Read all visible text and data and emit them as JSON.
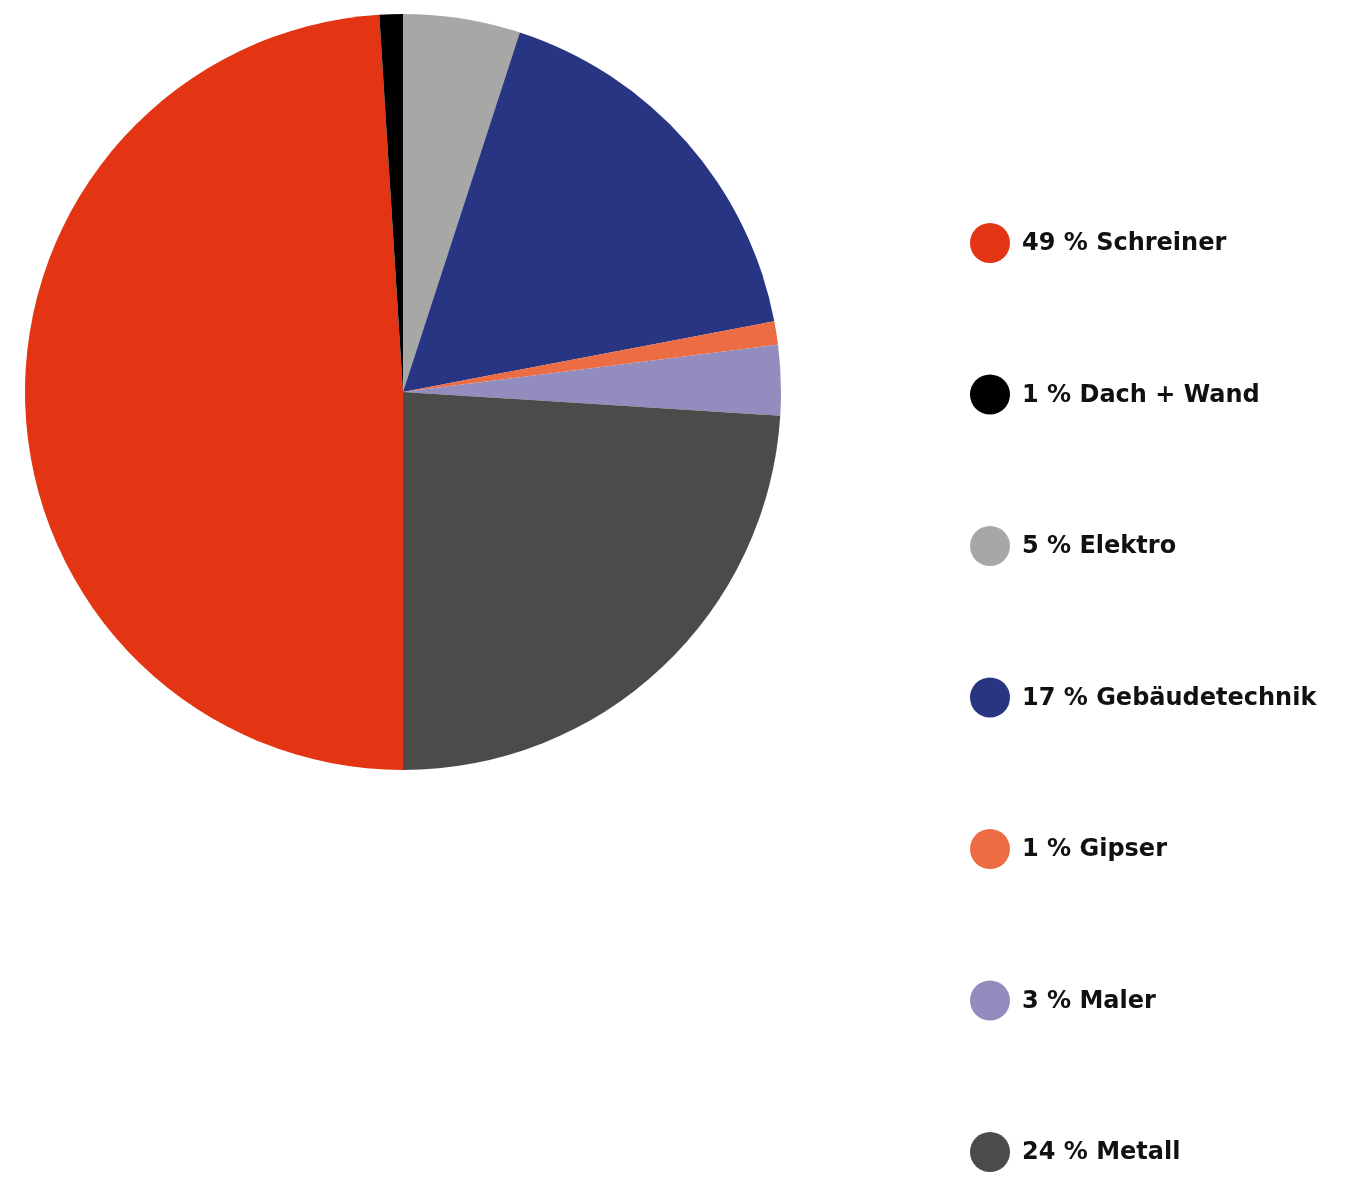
{
  "chart_data": {
    "type": "pie",
    "categories": [
      "Schreiner",
      "Dach + Wand",
      "Elektro",
      "Gebäudetechnik",
      "Gipser",
      "Maler",
      "Metall"
    ],
    "values": [
      49,
      1,
      5,
      17,
      1,
      3,
      24
    ],
    "value_labels": [
      "49 %",
      "1 %",
      "5 %",
      "17 %",
      "1 %",
      "3 %",
      "24 %"
    ],
    "colors": [
      "#e33513",
      "#000000",
      "#a7a7a5",
      "#283583",
      "#ec6c43",
      "#938cbf",
      "#4b4b4a"
    ],
    "legend": "right"
  }
}
